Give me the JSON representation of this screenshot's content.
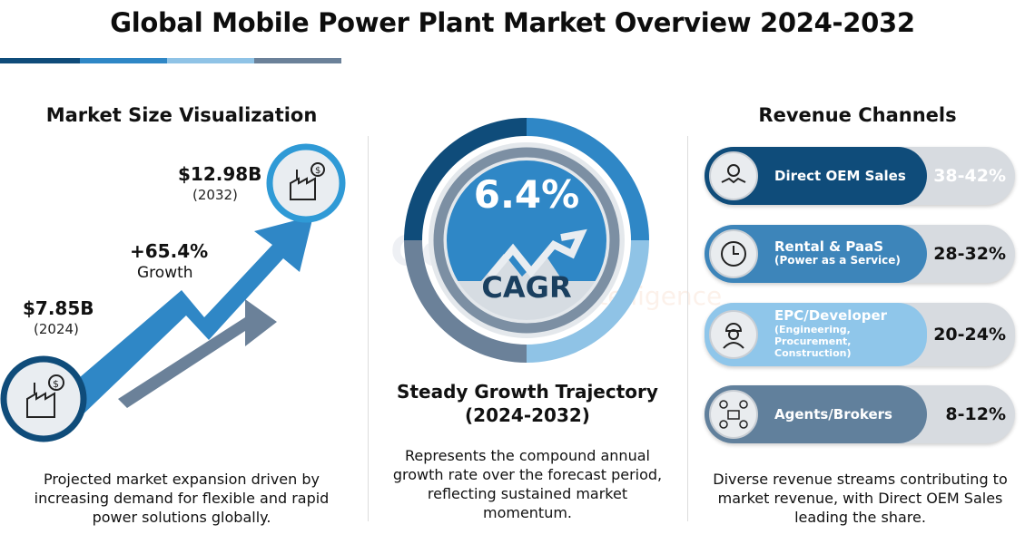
{
  "title": "Global Mobile Power Plant Market Overview 2024-2032",
  "colors": {
    "dark": "#0f4c7a",
    "mid": "#2f87c6",
    "light": "#8fc3e6",
    "gray": "#6b8199"
  },
  "watermark": {
    "line1": "Cognegic",
    "line2": "Business Intelligence"
  },
  "market_size": {
    "heading": "Market Size Visualization",
    "start": {
      "value": "$7.85B",
      "year": "(2024)",
      "icon": "factory-dollar-icon"
    },
    "end": {
      "value": "$12.98B",
      "year": "(2032)",
      "icon": "factory-dollar-icon"
    },
    "growth": {
      "value": "+65.4%",
      "label": "Growth"
    },
    "caption": "Projected market expansion driven by increasing demand for flexible and rapid power solutions globally."
  },
  "cagr": {
    "value": "6.4%",
    "label": "CAGR",
    "heading_line1": "Steady Growth Trajectory",
    "heading_line2": "(2024-2032)",
    "caption": "Represents the compound annual growth rate over the forecast period, reflecting sustained market momentum."
  },
  "revenue": {
    "heading": "Revenue Channels",
    "channels": [
      {
        "name": "Direct OEM Sales",
        "sub": "",
        "share": "38-42%",
        "icon": "handshake-gear-icon",
        "color": "#0f4c7a"
      },
      {
        "name": "Rental & PaaS",
        "sub": "(Power as a Service)",
        "share": "28-32%",
        "icon": "clock-plug-icon",
        "color": "#3d85ba"
      },
      {
        "name": "EPC/Developer",
        "sub": "(Engineering, Procurement, Construction)",
        "share": "20-24%",
        "icon": "engineer-icon",
        "color": "#8fc6ea"
      },
      {
        "name": "Agents/Brokers",
        "sub": "",
        "share": "8-12%",
        "icon": "network-briefcase-icon",
        "color": "#61809c"
      }
    ],
    "caption": "Diverse revenue streams contributing to market revenue, with Direct OEM Sales leading the share."
  }
}
